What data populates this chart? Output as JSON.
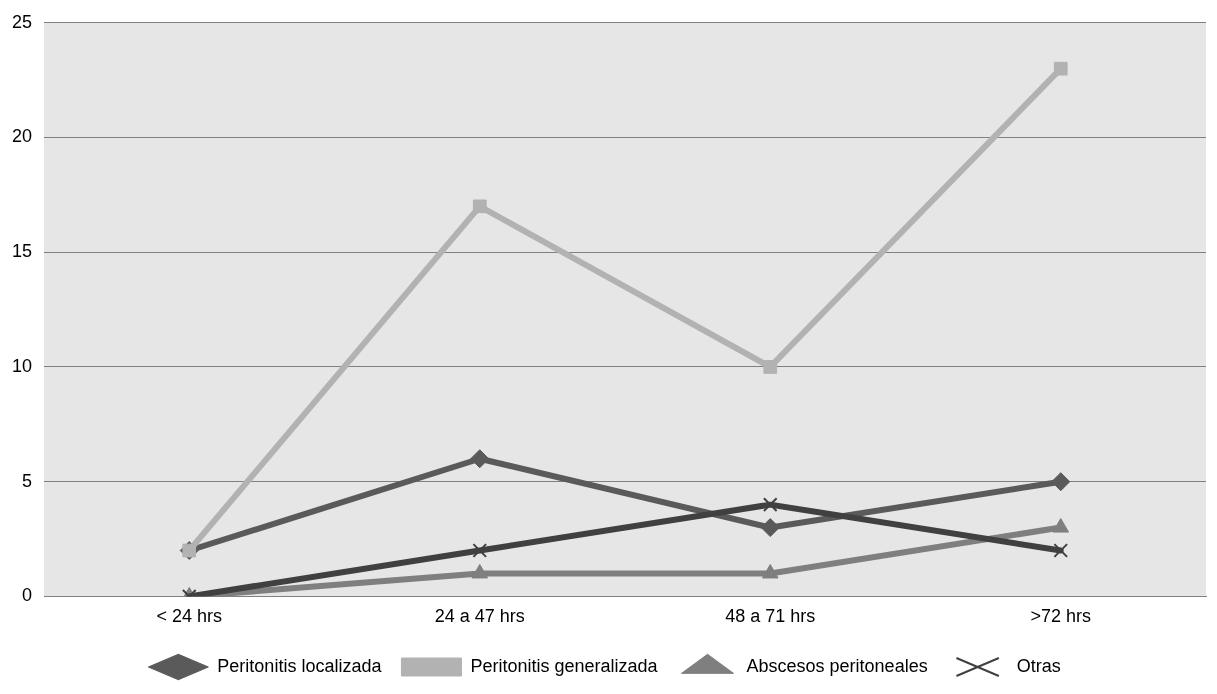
{
  "chart_data": {
    "type": "line",
    "categories": [
      "< 24 hrs",
      "24 a 47 hrs",
      "48 a 71 hrs",
      ">72 hrs"
    ],
    "series": [
      {
        "name": "Peritonitis localizada",
        "color": "#5a5a5a",
        "marker": "diamond",
        "values": [
          2,
          6,
          3,
          5
        ]
      },
      {
        "name": "Peritonitis generalizada",
        "color": "#b2b2b2",
        "marker": "square",
        "values": [
          2,
          17,
          10,
          23
        ]
      },
      {
        "name": "Abscesos peritoneales",
        "color": "#7f7f7f",
        "marker": "triangle",
        "values": [
          0,
          1,
          1,
          3
        ]
      },
      {
        "name": "Otras",
        "color": "#404040",
        "marker": "cross",
        "values": [
          0,
          2,
          4,
          2
        ]
      }
    ],
    "ylim": [
      0,
      25
    ],
    "yticks": [
      0,
      5,
      10,
      15,
      20,
      25
    ],
    "grid": "y",
    "legend": "bottom",
    "line_style": "solid"
  }
}
